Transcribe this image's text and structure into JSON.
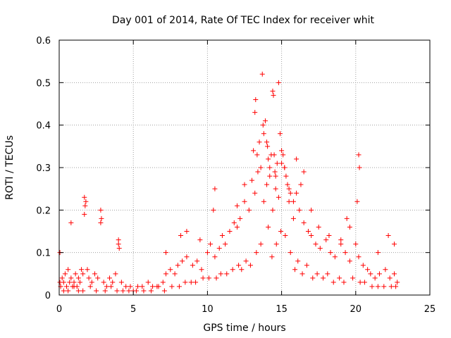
{
  "chart_data": {
    "type": "scatter",
    "title": "Day 001 of 2014, Rate Of TEC Index for receiver whit",
    "xlabel": "GPS time / hours",
    "ylabel": "ROTI / TECUs",
    "xlim": [
      0,
      25
    ],
    "ylim": [
      0,
      0.6
    ],
    "xticks": [
      0,
      5,
      10,
      15,
      20,
      25
    ],
    "xtick_labels": [
      "0",
      "5",
      "10",
      "15",
      "20",
      "25"
    ],
    "yticks": [
      0,
      0.1,
      0.2,
      0.3,
      0.4,
      0.5,
      0.6
    ],
    "ytick_labels": [
      "0",
      "0.1",
      "0.2",
      "0.3",
      "0.4",
      "0.5",
      "0.6"
    ],
    "grid": true,
    "marker": "+",
    "series": [
      {
        "name": "ROTI",
        "color": "#ff0000",
        "x": [
          0.05,
          0.1,
          0.2,
          0.3,
          0.4,
          0.5,
          0.6,
          0.7,
          0.8,
          0.9,
          1.0,
          1.1,
          1.2,
          1.3,
          1.4,
          1.5,
          1.6,
          1.7,
          1.8,
          1.9,
          2.0,
          2.2,
          2.4,
          2.6,
          2.8,
          3.0,
          3.2,
          3.4,
          3.6,
          3.8,
          4.0,
          4.2,
          4.5,
          4.8,
          5.0,
          5.3,
          5.6,
          6.0,
          6.3,
          6.6,
          7.0,
          7.2,
          7.5,
          7.8,
          8.0,
          8.3,
          8.6,
          9.0,
          9.3,
          9.6,
          10.0,
          10.2,
          10.5,
          10.8,
          11.0,
          11.2,
          11.5,
          11.8,
          12.0,
          12.2,
          12.5,
          12.8,
          13.0,
          13.2,
          13.4,
          13.6,
          13.8,
          14.0,
          14.2,
          14.4,
          14.6,
          14.8,
          15.0,
          15.2,
          15.5,
          15.8,
          16.0,
          16.2,
          16.5,
          16.8,
          17.0,
          17.3,
          17.6,
          18.0,
          18.3,
          18.6,
          19.0,
          19.3,
          19.6,
          20.0,
          20.2,
          20.5,
          20.8,
          21.0,
          21.3,
          21.6,
          22.0,
          22.3,
          22.6,
          22.8,
          0.05,
          0.8,
          1.7,
          1.75,
          2.8,
          2.85,
          4.0,
          4.05,
          7.2,
          8.2,
          8.6,
          9.5,
          10.4,
          10.5,
          12.0,
          12.5,
          13.1,
          13.2,
          13.25,
          13.35,
          13.5,
          13.7,
          13.75,
          13.8,
          13.9,
          14.0,
          14.05,
          14.1,
          14.2,
          14.3,
          14.4,
          14.45,
          14.5,
          14.55,
          14.6,
          14.7,
          14.8,
          14.9,
          15.0,
          15.1,
          15.2,
          15.3,
          15.4,
          15.5,
          15.6,
          15.8,
          16.0,
          16.3,
          16.5,
          17.0,
          17.5,
          18.2,
          19.0,
          19.4,
          19.6,
          20.1,
          20.2,
          20.25,
          21.5,
          22.2,
          22.6,
          0.3,
          0.6,
          1.0,
          1.3,
          1.6,
          2.1,
          2.5,
          3.1,
          3.5,
          3.9,
          4.3,
          4.7,
          5.2,
          5.7,
          6.2,
          6.7,
          7.1,
          7.6,
          8.1,
          8.5,
          8.9,
          9.2,
          9.7,
          10.1,
          10.6,
          10.9,
          11.3,
          11.7,
          12.1,
          12.3,
          12.6,
          12.9,
          13.3,
          13.6,
          14.1,
          14.35,
          14.65,
          14.95,
          15.25,
          15.6,
          15.9,
          16.1,
          16.4,
          16.7,
          17.1,
          17.4,
          17.8,
          18.1,
          18.5,
          18.9,
          19.2,
          19.8,
          20.3,
          20.6,
          21.1,
          21.5,
          21.9,
          22.4,
          22.7
        ],
        "y": [
          0.03,
          0.02,
          0.04,
          0.03,
          0.05,
          0.02,
          0.06,
          0.03,
          0.04,
          0.02,
          0.03,
          0.05,
          0.02,
          0.04,
          0.03,
          0.06,
          0.05,
          0.19,
          0.22,
          0.06,
          0.04,
          0.03,
          0.05,
          0.04,
          0.17,
          0.03,
          0.02,
          0.04,
          0.03,
          0.05,
          0.12,
          0.03,
          0.02,
          0.02,
          0.01,
          0.02,
          0.02,
          0.03,
          0.02,
          0.02,
          0.03,
          0.05,
          0.06,
          0.05,
          0.07,
          0.08,
          0.09,
          0.07,
          0.08,
          0.06,
          0.1,
          0.12,
          0.09,
          0.11,
          0.14,
          0.12,
          0.15,
          0.17,
          0.16,
          0.18,
          0.22,
          0.2,
          0.27,
          0.24,
          0.29,
          0.3,
          0.22,
          0.26,
          0.28,
          0.2,
          0.25,
          0.23,
          0.31,
          0.3,
          0.22,
          0.18,
          0.24,
          0.2,
          0.17,
          0.15,
          0.14,
          0.12,
          0.11,
          0.13,
          0.1,
          0.09,
          0.12,
          0.1,
          0.08,
          0.12,
          0.09,
          0.07,
          0.06,
          0.05,
          0.04,
          0.05,
          0.06,
          0.04,
          0.05,
          0.03,
          0.1,
          0.17,
          0.23,
          0.21,
          0.2,
          0.18,
          0.13,
          0.11,
          0.1,
          0.14,
          0.15,
          0.13,
          0.2,
          0.25,
          0.21,
          0.26,
          0.34,
          0.43,
          0.46,
          0.33,
          0.36,
          0.52,
          0.4,
          0.38,
          0.41,
          0.36,
          0.35,
          0.32,
          0.3,
          0.33,
          0.48,
          0.47,
          0.33,
          0.29,
          0.28,
          0.31,
          0.5,
          0.38,
          0.34,
          0.33,
          0.3,
          0.28,
          0.26,
          0.25,
          0.24,
          0.22,
          0.32,
          0.26,
          0.29,
          0.2,
          0.16,
          0.14,
          0.13,
          0.18,
          0.16,
          0.22,
          0.33,
          0.3,
          0.1,
          0.14,
          0.12,
          0.01,
          0.01,
          0.02,
          0.01,
          0.01,
          0.02,
          0.01,
          0.01,
          0.02,
          0.01,
          0.01,
          0.01,
          0.01,
          0.01,
          0.01,
          0.02,
          0.01,
          0.02,
          0.02,
          0.03,
          0.03,
          0.03,
          0.04,
          0.04,
          0.04,
          0.05,
          0.05,
          0.06,
          0.07,
          0.06,
          0.08,
          0.07,
          0.1,
          0.12,
          0.16,
          0.09,
          0.12,
          0.15,
          0.14,
          0.1,
          0.06,
          0.08,
          0.05,
          0.07,
          0.04,
          0.05,
          0.04,
          0.05,
          0.03,
          0.04,
          0.03,
          0.04,
          0.03,
          0.03,
          0.02,
          0.02,
          0.02,
          0.02,
          0.02
        ]
      }
    ]
  }
}
